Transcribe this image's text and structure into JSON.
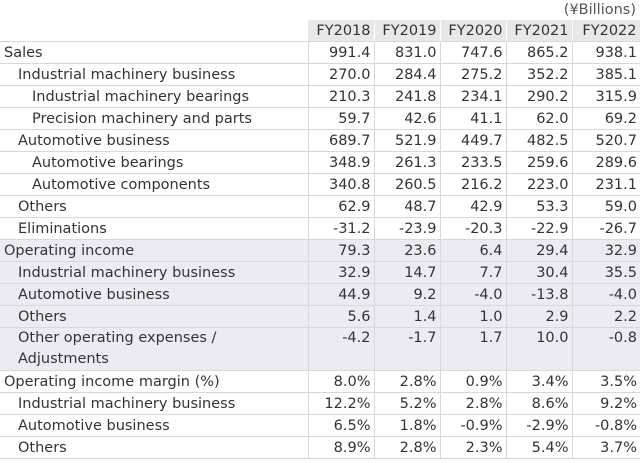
{
  "unit_label": "(¥Billions)",
  "headers": [
    "FY2018",
    "FY2019",
    "FY2020",
    "FY2021",
    "FY2022"
  ],
  "rows": [
    {
      "label": "Sales",
      "values": [
        "991.4",
        "831.0",
        "747.6",
        "865.2",
        "938.1"
      ]
    },
    {
      "label": "Industrial machinery business",
      "values": [
        "270.0",
        "284.4",
        "275.2",
        "352.2",
        "385.1"
      ]
    },
    {
      "label": "Industrial machinery bearings",
      "values": [
        "210.3",
        "241.8",
        "234.1",
        "290.2",
        "315.9"
      ]
    },
    {
      "label": "Precision machinery and parts",
      "values": [
        "59.7",
        "42.6",
        "41.1",
        "62.0",
        "69.2"
      ]
    },
    {
      "label": "Automotive business",
      "values": [
        "689.7",
        "521.9",
        "449.7",
        "482.5",
        "520.7"
      ]
    },
    {
      "label": "Automotive bearings",
      "values": [
        "348.9",
        "261.3",
        "233.5",
        "259.6",
        "289.6"
      ]
    },
    {
      "label": "Automotive components",
      "values": [
        "340.8",
        "260.5",
        "216.2",
        "223.0",
        "231.1"
      ]
    },
    {
      "label": "Others",
      "values": [
        "62.9",
        "48.7",
        "42.9",
        "53.3",
        "59.0"
      ]
    },
    {
      "label": "Eliminations",
      "values": [
        "-31.2",
        "-23.9",
        "-20.3",
        "-22.9",
        "-26.7"
      ]
    },
    {
      "label": "Operating income",
      "values": [
        "79.3",
        "23.6",
        "6.4",
        "29.4",
        "32.9"
      ]
    },
    {
      "label": "Industrial machinery business",
      "values": [
        "32.9",
        "14.7",
        "7.7",
        "30.4",
        "35.5"
      ]
    },
    {
      "label": "Automotive business",
      "values": [
        "44.9",
        "9.2",
        "-4.0",
        "-13.8",
        "-4.0"
      ]
    },
    {
      "label": "Others",
      "values": [
        "5.6",
        "1.4",
        "1.0",
        "2.9",
        "2.2"
      ]
    },
    {
      "label": "Other operating expenses / Adjustments",
      "values": [
        "-4.2",
        "-1.7",
        "1.7",
        "10.0",
        "-0.8"
      ]
    },
    {
      "label": "Operating income margin (%)",
      "values": [
        "8.0%",
        "2.8%",
        "0.9%",
        "3.4%",
        "3.5%"
      ]
    },
    {
      "label": "Industrial machinery business",
      "values": [
        "12.2%",
        "5.2%",
        "2.8%",
        "8.6%",
        "9.2%"
      ]
    },
    {
      "label": "Automotive business",
      "values": [
        "6.5%",
        "1.8%",
        "-0.9%",
        "-2.9%",
        "-0.8%"
      ]
    },
    {
      "label": "Others",
      "values": [
        "8.9%",
        "2.8%",
        "2.3%",
        "5.4%",
        "3.7%"
      ]
    }
  ]
}
